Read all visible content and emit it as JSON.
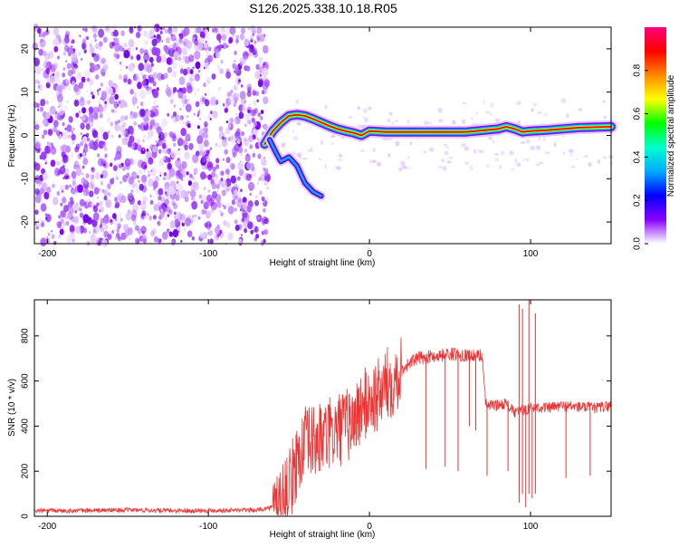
{
  "figure": {
    "title": "S126.2025.338.10.18.R05"
  },
  "chart_data": [
    {
      "type": "heatmap",
      "xlabel": "Height of straight line (km)",
      "ylabel": "Frequency (Hz)",
      "xlim": [
        -208,
        150
      ],
      "ylim": [
        -25,
        25
      ],
      "x_ticks": [
        -200,
        -100,
        0,
        100
      ],
      "y_ticks": [
        -20,
        -10,
        0,
        10,
        20
      ],
      "noise_region_x": [
        -208,
        -63
      ],
      "ridge": {
        "x": [
          -65,
          -60,
          -55,
          -50,
          -45,
          -40,
          -35,
          -30,
          -25,
          -20,
          -15,
          -10,
          -5,
          0,
          10,
          20,
          40,
          60,
          80,
          85,
          90,
          95,
          100,
          110,
          120,
          130,
          150
        ],
        "y": [
          -2,
          1,
          3,
          4.5,
          4.8,
          4.5,
          3.8,
          3,
          2.2,
          1.5,
          1,
          0.6,
          0,
          1,
          0.8,
          0.8,
          0.8,
          0.8,
          1.5,
          2,
          1.5,
          0.8,
          1,
          1.2,
          1.5,
          1.8,
          2
        ]
      },
      "low_branch": {
        "x": [
          -62,
          -58,
          -55,
          -50,
          -45,
          -40,
          -35,
          -30
        ],
        "y": [
          -1,
          -4,
          -6,
          -5,
          -7,
          -11,
          -13,
          -14
        ]
      },
      "colorbar": {
        "label": "Normalized spectral amplitude",
        "range": [
          0,
          1
        ],
        "ticks": [
          0.0,
          0.2,
          0.4,
          0.6,
          0.8
        ],
        "tick_labels": [
          "0.0",
          "0.2",
          "0.4",
          "0.6",
          "0.8"
        ],
        "colormap": [
          "#ffffff",
          "#8800ff",
          "#0000ff",
          "#00aaff",
          "#00ffcc",
          "#00ff00",
          "#ffff00",
          "#ff8800",
          "#ff0000",
          "#ff0077"
        ]
      },
      "colors": {
        "noise": "#8a00ff",
        "ridge_core": "#ff0000"
      }
    },
    {
      "type": "line",
      "xlabel": "Height of straight line (km)",
      "ylabel": "SNR (10 * v/v)",
      "xlim": [
        -208,
        150
      ],
      "ylim": [
        0,
        960
      ],
      "x_ticks": [
        -200,
        -100,
        0,
        100
      ],
      "y_ticks": [
        0,
        200,
        400,
        600,
        800
      ],
      "series": [
        {
          "color": "#ee3333",
          "x": [
            -208,
            -180,
            -150,
            -120,
            -90,
            -70,
            -60,
            -50,
            -45,
            -40,
            -35,
            -30,
            -25,
            -20,
            -15,
            -10,
            -5,
            0,
            5,
            10,
            15,
            20,
            25,
            30,
            40,
            50,
            60,
            65,
            70,
            72,
            75,
            80,
            85,
            90,
            95,
            100,
            105,
            110,
            120,
            130,
            140,
            150
          ],
          "y": [
            25,
            25,
            28,
            25,
            27,
            28,
            40,
            120,
            250,
            320,
            330,
            340,
            360,
            380,
            400,
            420,
            480,
            510,
            530,
            580,
            610,
            650,
            680,
            700,
            710,
            720,
            715,
            710,
            715,
            500,
            490,
            495,
            500,
            460,
            470,
            480,
            485,
            480,
            490,
            485,
            480,
            490
          ]
        }
      ],
      "spikes_down": [
        {
          "x": 35,
          "y": 210
        },
        {
          "x": 47,
          "y": 220
        },
        {
          "x": 55,
          "y": 200
        },
        {
          "x": 62,
          "y": 400
        },
        {
          "x": 66,
          "y": 380
        },
        {
          "x": 73,
          "y": 180
        },
        {
          "x": 86,
          "y": 200
        },
        {
          "x": 93,
          "y": 60
        },
        {
          "x": 97,
          "y": 40
        },
        {
          "x": 101,
          "y": 80
        },
        {
          "x": 122,
          "y": 170
        },
        {
          "x": 137,
          "y": 180
        }
      ],
      "spikes_up": [
        {
          "x": 93,
          "y": 940
        },
        {
          "x": 95,
          "y": 920
        },
        {
          "x": 99,
          "y": 960
        },
        {
          "x": 103,
          "y": 900
        }
      ]
    }
  ]
}
